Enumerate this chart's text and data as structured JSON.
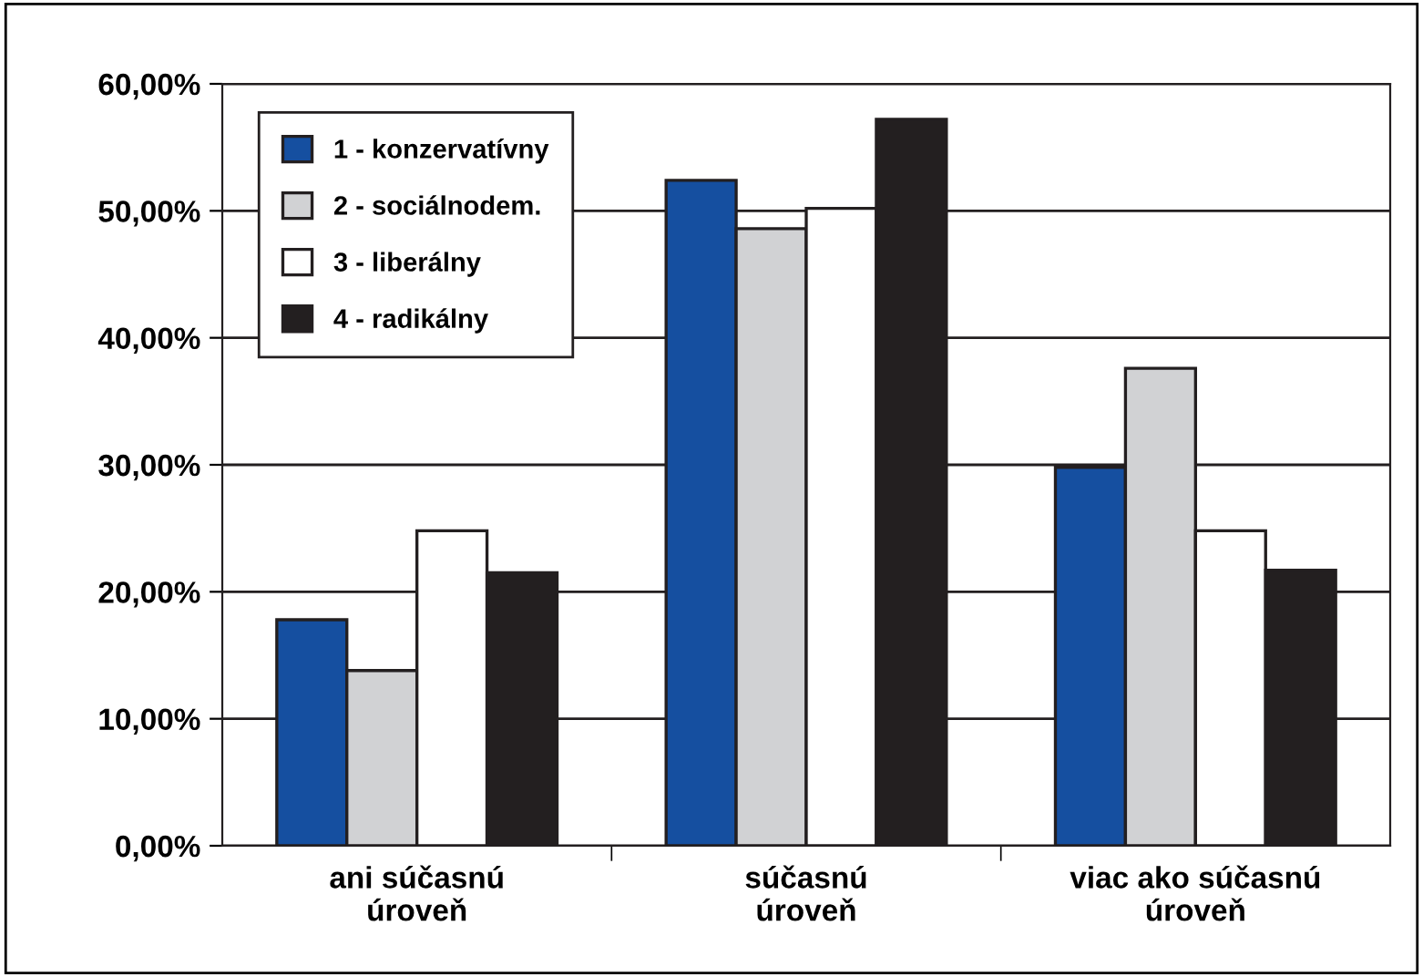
{
  "chart_data": {
    "type": "bar",
    "categories": [
      "ani súčasnú\núroveň",
      "súčasnú\núroveň",
      "viac ako súčasnú\núroveň"
    ],
    "series": [
      {
        "name": "1 - konzervatívny",
        "color": "#154fa0",
        "values": [
          17.8,
          52.4,
          29.8
        ]
      },
      {
        "name": "2 - sociálnodem.",
        "color": "#d1d2d4",
        "values": [
          13.8,
          48.6,
          37.6
        ]
      },
      {
        "name": "3 - liberálny",
        "color": "#ffffff",
        "values": [
          24.8,
          50.2,
          24.8
        ]
      },
      {
        "name": "4 - radikálny",
        "color": "#231f20",
        "values": [
          21.5,
          57.2,
          21.7
        ]
      }
    ],
    "ylim": [
      0,
      60
    ],
    "yticks": [
      {
        "value": 0,
        "label": "0,00%"
      },
      {
        "value": 10,
        "label": "10,00%"
      },
      {
        "value": 20,
        "label": "20,00%"
      },
      {
        "value": 30,
        "label": "30,00%"
      },
      {
        "value": 40,
        "label": "40,00%"
      },
      {
        "value": 50,
        "label": "50,00%"
      },
      {
        "value": 60,
        "label": "60,00%"
      }
    ],
    "grid": "y",
    "legend": "top left"
  }
}
